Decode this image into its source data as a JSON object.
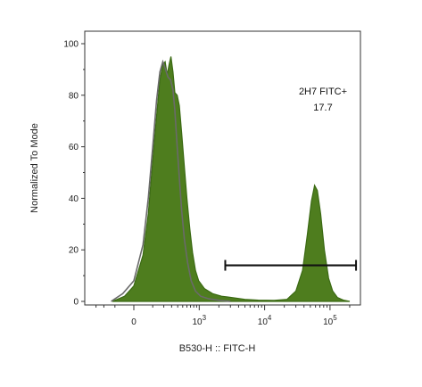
{
  "chart_data": {
    "type": "area",
    "xlabel": "B530-H :: FITC-H",
    "ylabel": "Normalized To Mode",
    "ylim": [
      0,
      100
    ],
    "yticks": [
      "0",
      "20",
      "40",
      "60",
      "80",
      "100"
    ],
    "xticks": [
      {
        "base": "0",
        "exp": ""
      },
      {
        "base": "10",
        "exp": "3"
      },
      {
        "base": "10",
        "exp": "4"
      },
      {
        "base": "10",
        "exp": "5"
      }
    ],
    "x_scale": "biexponential",
    "grid": false,
    "series": [
      {
        "name": "",
        "style": "filled",
        "color": "#4e7d1e",
        "edge": "#3b6a14",
        "points": [
          [
            -120,
            0
          ],
          [
            -40,
            2
          ],
          [
            0,
            6
          ],
          [
            40,
            18
          ],
          [
            70,
            34
          ],
          [
            100,
            55
          ],
          [
            130,
            72
          ],
          [
            160,
            86
          ],
          [
            190,
            92
          ],
          [
            215,
            93
          ],
          [
            240,
            88
          ],
          [
            265,
            92
          ],
          [
            290,
            95
          ],
          [
            320,
            89
          ],
          [
            350,
            81
          ],
          [
            390,
            80
          ],
          [
            430,
            76
          ],
          [
            480,
            65
          ],
          [
            540,
            52
          ],
          [
            600,
            40
          ],
          [
            680,
            28
          ],
          [
            760,
            19
          ],
          [
            860,
            12
          ],
          [
            980,
            8
          ],
          [
            1200,
            5
          ],
          [
            1600,
            3
          ],
          [
            2200,
            2
          ],
          [
            3200,
            1.5
          ],
          [
            5000,
            0.8
          ],
          [
            8000,
            0.5
          ],
          [
            14000,
            0.4
          ],
          [
            22000,
            0.8
          ],
          [
            30000,
            4
          ],
          [
            38000,
            12
          ],
          [
            45000,
            26
          ],
          [
            52000,
            39
          ],
          [
            58000,
            45
          ],
          [
            64000,
            43
          ],
          [
            72000,
            34
          ],
          [
            82000,
            20
          ],
          [
            95000,
            9
          ],
          [
            110000,
            4
          ],
          [
            130000,
            1.5
          ],
          [
            160000,
            0.5
          ],
          [
            200000,
            0
          ]
        ]
      },
      {
        "name": "",
        "style": "line",
        "color": "#6a6a6a",
        "points": [
          [
            -130,
            0
          ],
          [
            -50,
            3
          ],
          [
            0,
            8
          ],
          [
            40,
            22
          ],
          [
            70,
            40
          ],
          [
            100,
            60
          ],
          [
            130,
            78
          ],
          [
            160,
            89
          ],
          [
            190,
            93
          ],
          [
            220,
            90
          ],
          [
            250,
            87
          ],
          [
            285,
            86
          ],
          [
            320,
            82
          ],
          [
            350,
            74
          ],
          [
            390,
            60
          ],
          [
            430,
            48
          ],
          [
            480,
            35
          ],
          [
            540,
            24
          ],
          [
            620,
            15
          ],
          [
            720,
            8
          ],
          [
            860,
            4
          ],
          [
            1050,
            2
          ],
          [
            1400,
            1
          ],
          [
            2000,
            0.4
          ],
          [
            3000,
            0
          ]
        ]
      }
    ],
    "gate": {
      "label": "2H7 FITC+",
      "value": "17.7",
      "x_range": [
        2500,
        250000
      ],
      "y": 14
    }
  }
}
